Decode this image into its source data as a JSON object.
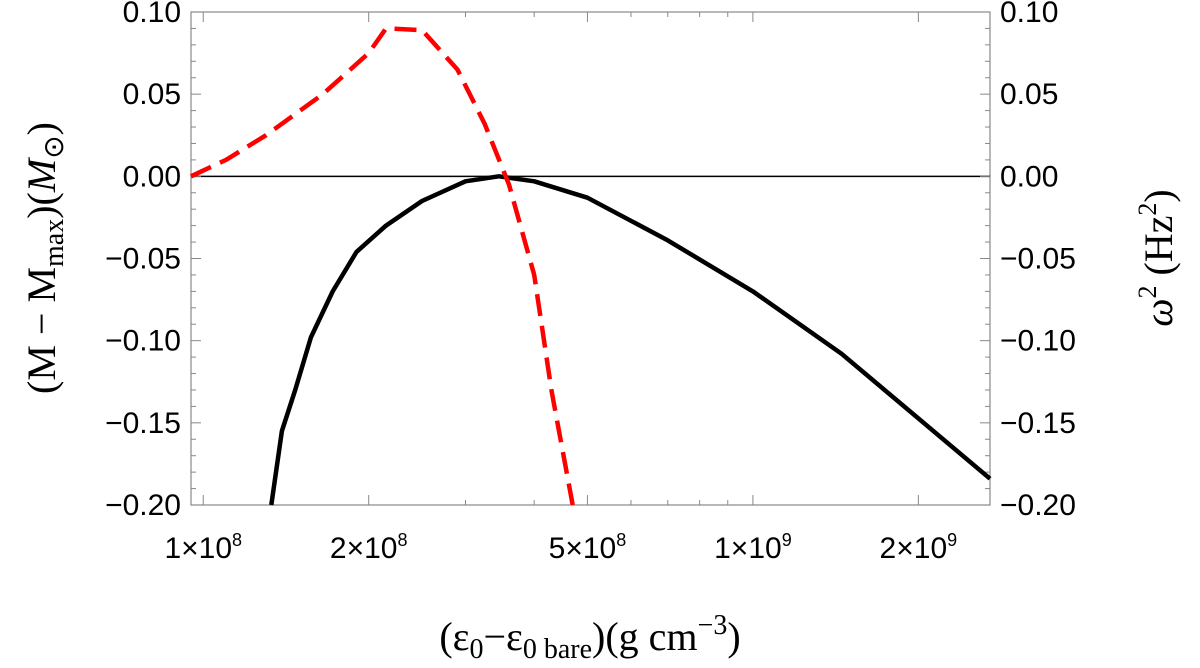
{
  "chart_data": {
    "type": "line",
    "xscale": "log",
    "xlim": [
      95000000,
      2700000000
    ],
    "ylim": [
      -0.2,
      0.1
    ],
    "y2lim": [
      -0.2,
      0.1
    ],
    "grid": false,
    "xlabel": {
      "open": "(",
      "eps1": "ε",
      "sub1": "0",
      "minus": "−",
      "eps2": "ε",
      "sub2": "0 bare",
      "mid": ")(g cm",
      "sup": "−3",
      "close": ")"
    },
    "ylabel": {
      "text": "(M − M",
      "sub": "max",
      "mid": ")(",
      "m": "M",
      "sun": "⊙",
      "close": ")"
    },
    "y2label": {
      "omega": "ω",
      "sup1": "2",
      "mid": " (Hz",
      "sup2": "2",
      "close": ")"
    },
    "x_ticks": [
      {
        "value": 100000000,
        "mant": "1",
        "times": "×",
        "base": "10",
        "exp": "8"
      },
      {
        "value": 200000000,
        "mant": "2",
        "times": "×",
        "base": "10",
        "exp": "8"
      },
      {
        "value": 500000000,
        "mant": "5",
        "times": "×",
        "base": "10",
        "exp": "8"
      },
      {
        "value": 1000000000,
        "mant": "1",
        "times": "×",
        "base": "10",
        "exp": "9"
      },
      {
        "value": 2000000000,
        "mant": "2",
        "times": "×",
        "base": "10",
        "exp": "9"
      }
    ],
    "y_ticks": [
      {
        "value": 0.1,
        "label": "0.10"
      },
      {
        "value": 0.05,
        "label": "0.05"
      },
      {
        "value": 0.0,
        "label": "0.00"
      },
      {
        "value": -0.05,
        "label": "−0.05"
      },
      {
        "value": -0.1,
        "label": "−0.10"
      },
      {
        "value": -0.15,
        "label": "−0.15"
      },
      {
        "value": -0.2,
        "label": "−0.20"
      }
    ],
    "hline": 0,
    "series": [
      {
        "axis": "left",
        "color": "#000000",
        "dash": "solid",
        "x": [
          133000000,
          139000000,
          147000000,
          157000000,
          172000000,
          190000000,
          215000000,
          250000000,
          300000000,
          345000000,
          400000000,
          500000000,
          700000000,
          1000000000,
          1450000000,
          2700000000
        ],
        "y": [
          -0.2,
          -0.155,
          -0.13,
          -0.098,
          -0.07,
          -0.046,
          -0.03,
          -0.015,
          -0.003,
          0.0,
          -0.003,
          -0.013,
          -0.039,
          -0.07,
          -0.108,
          -0.184
        ]
      },
      {
        "axis": "right",
        "color": "#ff0000",
        "dash": "dashed",
        "x": [
          95000000,
          110000000,
          130000000,
          165000000,
          200000000,
          215000000,
          250000000,
          290000000,
          325000000,
          360000000,
          400000000,
          430000000,
          470000000
        ],
        "y": [
          0.0,
          0.01,
          0.025,
          0.05,
          0.075,
          0.09,
          0.089,
          0.065,
          0.032,
          -0.005,
          -0.06,
          -0.13,
          -0.2
        ]
      }
    ]
  }
}
